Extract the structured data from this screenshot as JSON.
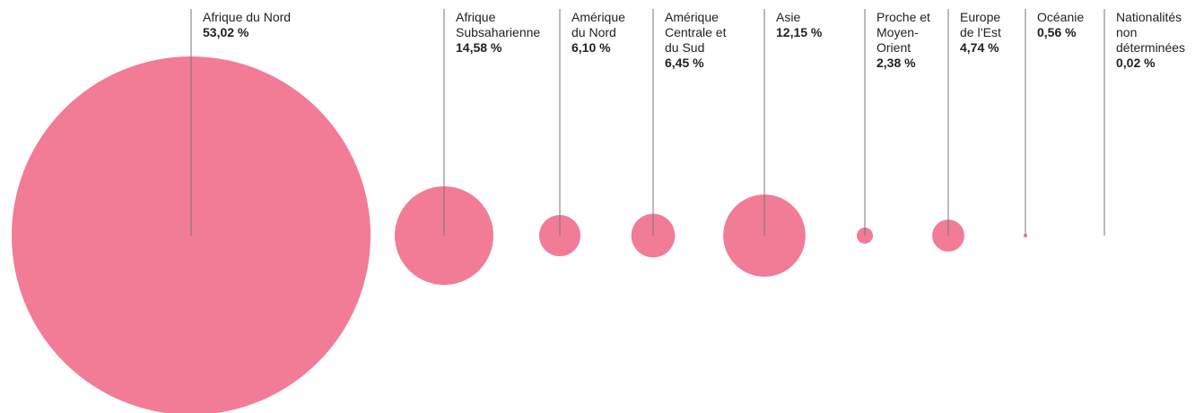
{
  "chart_data": {
    "type": "bubble",
    "categories": [
      "Afrique du Nord",
      "Afrique Subsaharienne",
      "Amérique du Nord",
      "Amérique Centrale et du Sud",
      "Asie",
      "Proche et Moyen-Orient",
      "Europe de l’Est",
      "Océanie",
      "Nationalités non déterminées"
    ],
    "values": [
      53.02,
      14.58,
      6.1,
      6.45,
      12.15,
      2.38,
      4.74,
      0.56,
      0.02
    ],
    "value_labels": [
      "53,02 %",
      "14,58 %",
      "6,10 %",
      "6,45 %",
      "12,15 %",
      "2,38 %",
      "4,74 %",
      "0,56 %",
      "0,02 %"
    ],
    "color": "#f27b96"
  }
}
